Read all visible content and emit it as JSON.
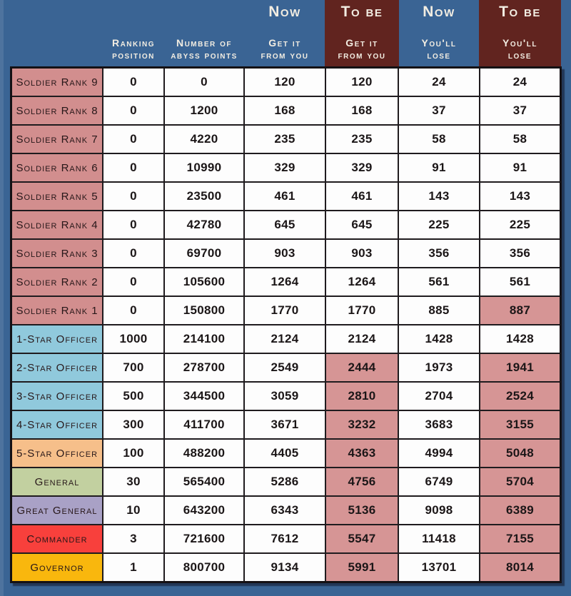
{
  "colors": {
    "background": "#3a6494",
    "tobe_header_bg": "#61241f",
    "header_text": "#f2ede2",
    "highlight_cell": "#d69595",
    "grid_border": "#141114",
    "tier_soldier": "#d28e8e",
    "tier_officer": "#90c9dc",
    "tier_officer5": "#f6bf8a",
    "tier_general": "#c2d0a0",
    "tier_great_general": "#a9a1c6",
    "tier_commander": "#f8403c",
    "tier_governor": "#f9b70d"
  },
  "chart_data": {
    "type": "table",
    "columns": [
      {
        "key": "rank",
        "group": "",
        "label_line1": "",
        "label_line2": "",
        "accent": false
      },
      {
        "key": "position",
        "group": "",
        "label_line1": "Ranking",
        "label_line2": "position",
        "accent": false
      },
      {
        "key": "points",
        "group": "",
        "label_line1": "Number of",
        "label_line2": "abyss points",
        "accent": false
      },
      {
        "key": "now_get",
        "group": "Now",
        "label_line1": "Get it",
        "label_line2": "from you",
        "accent": false
      },
      {
        "key": "tobe_get",
        "group": "To be",
        "label_line1": "Get it",
        "label_line2": "from you",
        "accent": true
      },
      {
        "key": "now_lose",
        "group": "Now",
        "label_line1": "You'll",
        "label_line2": "lose",
        "accent": false
      },
      {
        "key": "tobe_lose",
        "group": "To be",
        "label_line1": "You'll",
        "label_line2": "lose",
        "accent": true
      }
    ],
    "rows": [
      {
        "rank": "Soldier Rank 9",
        "tier": "soldier",
        "position": "0",
        "points": "0",
        "now_get": "120",
        "tobe_get": "120",
        "now_lose": "24",
        "tobe_lose": "24",
        "highlight": []
      },
      {
        "rank": "Soldier Rank 8",
        "tier": "soldier",
        "position": "0",
        "points": "1200",
        "now_get": "168",
        "tobe_get": "168",
        "now_lose": "37",
        "tobe_lose": "37",
        "highlight": []
      },
      {
        "rank": "Soldier Rank 7",
        "tier": "soldier",
        "position": "0",
        "points": "4220",
        "now_get": "235",
        "tobe_get": "235",
        "now_lose": "58",
        "tobe_lose": "58",
        "highlight": []
      },
      {
        "rank": "Soldier Rank 6",
        "tier": "soldier",
        "position": "0",
        "points": "10990",
        "now_get": "329",
        "tobe_get": "329",
        "now_lose": "91",
        "tobe_lose": "91",
        "highlight": []
      },
      {
        "rank": "Soldier Rank 5",
        "tier": "soldier",
        "position": "0",
        "points": "23500",
        "now_get": "461",
        "tobe_get": "461",
        "now_lose": "143",
        "tobe_lose": "143",
        "highlight": []
      },
      {
        "rank": "Soldier Rank 4",
        "tier": "soldier",
        "position": "0",
        "points": "42780",
        "now_get": "645",
        "tobe_get": "645",
        "now_lose": "225",
        "tobe_lose": "225",
        "highlight": []
      },
      {
        "rank": "Soldier Rank 3",
        "tier": "soldier",
        "position": "0",
        "points": "69700",
        "now_get": "903",
        "tobe_get": "903",
        "now_lose": "356",
        "tobe_lose": "356",
        "highlight": []
      },
      {
        "rank": "Soldier Rank 2",
        "tier": "soldier",
        "position": "0",
        "points": "105600",
        "now_get": "1264",
        "tobe_get": "1264",
        "now_lose": "561",
        "tobe_lose": "561",
        "highlight": []
      },
      {
        "rank": "Soldier Rank 1",
        "tier": "soldier",
        "position": "0",
        "points": "150800",
        "now_get": "1770",
        "tobe_get": "1770",
        "now_lose": "885",
        "tobe_lose": "887",
        "highlight": [
          "tobe_lose"
        ]
      },
      {
        "rank": "1-Star Officer",
        "tier": "officer",
        "position": "1000",
        "points": "214100",
        "now_get": "2124",
        "tobe_get": "2124",
        "now_lose": "1428",
        "tobe_lose": "1428",
        "highlight": []
      },
      {
        "rank": "2-Star Officer",
        "tier": "officer",
        "position": "700",
        "points": "278700",
        "now_get": "2549",
        "tobe_get": "2444",
        "now_lose": "1973",
        "tobe_lose": "1941",
        "highlight": [
          "tobe_get",
          "tobe_lose"
        ]
      },
      {
        "rank": "3-Star Officer",
        "tier": "officer",
        "position": "500",
        "points": "344500",
        "now_get": "3059",
        "tobe_get": "2810",
        "now_lose": "2704",
        "tobe_lose": "2524",
        "highlight": [
          "tobe_get",
          "tobe_lose"
        ]
      },
      {
        "rank": "4-Star Officer",
        "tier": "officer",
        "position": "300",
        "points": "411700",
        "now_get": "3671",
        "tobe_get": "3232",
        "now_lose": "3683",
        "tobe_lose": "3155",
        "highlight": [
          "tobe_get",
          "tobe_lose"
        ]
      },
      {
        "rank": "5-Star Officer",
        "tier": "officer5",
        "position": "100",
        "points": "488200",
        "now_get": "4405",
        "tobe_get": "4363",
        "now_lose": "4994",
        "tobe_lose": "5048",
        "highlight": [
          "tobe_get",
          "tobe_lose"
        ]
      },
      {
        "rank": "General",
        "tier": "general",
        "position": "30",
        "points": "565400",
        "now_get": "5286",
        "tobe_get": "4756",
        "now_lose": "6749",
        "tobe_lose": "5704",
        "highlight": [
          "tobe_get",
          "tobe_lose"
        ]
      },
      {
        "rank": "Great General",
        "tier": "great_general",
        "position": "10",
        "points": "643200",
        "now_get": "6343",
        "tobe_get": "5136",
        "now_lose": "9098",
        "tobe_lose": "6389",
        "highlight": [
          "tobe_get",
          "tobe_lose"
        ]
      },
      {
        "rank": "Commander",
        "tier": "commander",
        "position": "3",
        "points": "721600",
        "now_get": "7612",
        "tobe_get": "5547",
        "now_lose": "11418",
        "tobe_lose": "7155",
        "highlight": [
          "tobe_get",
          "tobe_lose"
        ]
      },
      {
        "rank": "Governor",
        "tier": "governor",
        "position": "1",
        "points": "800700",
        "now_get": "9134",
        "tobe_get": "5991",
        "now_lose": "13701",
        "tobe_lose": "8014",
        "highlight": [
          "tobe_get",
          "tobe_lose"
        ]
      }
    ]
  }
}
